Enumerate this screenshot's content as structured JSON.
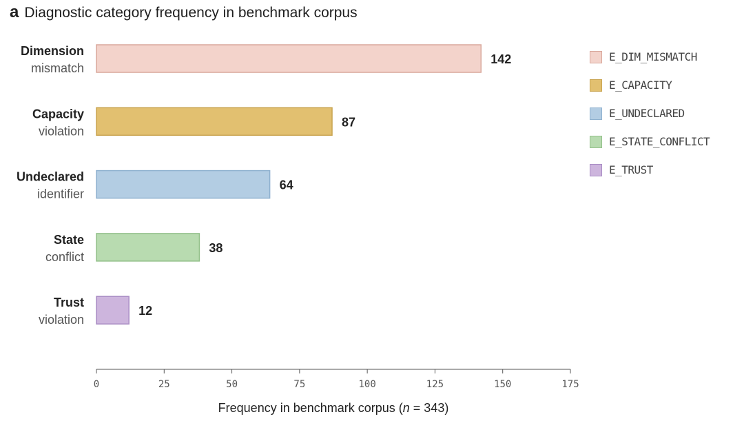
{
  "panel_letter": "a",
  "chart_data": {
    "type": "bar",
    "orientation": "horizontal",
    "title": "Diagnostic category frequency in benchmark corpus",
    "categories": [
      {
        "line1": "Dimension",
        "line2": "mismatch"
      },
      {
        "line1": "Capacity",
        "line2": "violation"
      },
      {
        "line1": "Undeclared",
        "line2": "identifier"
      },
      {
        "line1": "State",
        "line2": "conflict"
      },
      {
        "line1": "Trust",
        "line2": "violation"
      }
    ],
    "values": [
      142,
      87,
      64,
      38,
      12
    ],
    "value_labels": [
      "142",
      "87",
      "64",
      "38",
      "12"
    ],
    "colors": [
      {
        "fill": "#f3d3cb",
        "stroke": "#d9a79b"
      },
      {
        "fill": "#e2c070",
        "stroke": "#c9a450"
      },
      {
        "fill": "#b3cde3",
        "stroke": "#8fb1cf"
      },
      {
        "fill": "#b8dbb0",
        "stroke": "#93c08a"
      },
      {
        "fill": "#cdb5dd",
        "stroke": "#a98cc4"
      }
    ],
    "legend": [
      "E_DIM_MISMATCH",
      "E_CAPACITY",
      "E_UNDECLARED",
      "E_STATE_CONFLICT",
      "E_TRUST"
    ],
    "legend_position": "right",
    "xlim": [
      0,
      175
    ],
    "xticks": [
      0,
      25,
      50,
      75,
      100,
      125,
      150,
      175
    ],
    "xlabel": {
      "text": "Frequency in benchmark corpus",
      "n_label": "n",
      "n_value": "= 343)",
      "open": "("
    },
    "grid": false
  }
}
